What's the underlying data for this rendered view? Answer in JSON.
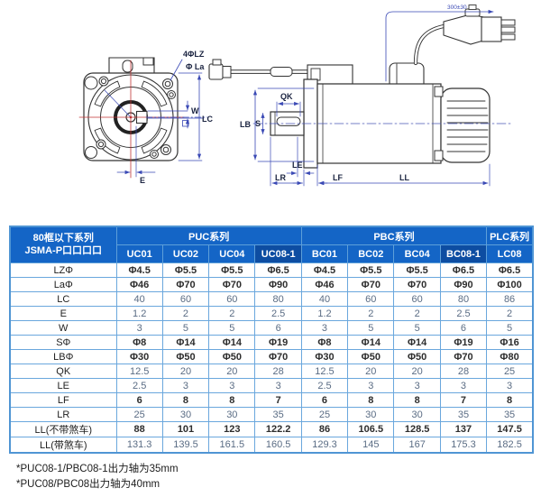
{
  "diagram": {
    "labels": {
      "holes": "4ΦLZ",
      "la": "Φ La",
      "w": "W",
      "lc": "LC",
      "e": "E",
      "qk": "QK",
      "s": "S",
      "lb": "LB",
      "le": "LE",
      "lr": "LR",
      "lf": "LF",
      "ll": "LL",
      "cable_length": "300±30"
    }
  },
  "table": {
    "corner_header": {
      "line1": "80框以下系列",
      "line2": "JSMA-P口口口口"
    },
    "groups": [
      {
        "label": "PUC系列",
        "span": 4
      },
      {
        "label": "PBC系列",
        "span": 4
      },
      {
        "label": "PLC系列",
        "span": 1
      }
    ],
    "columns": [
      "UC01",
      "UC02",
      "UC04",
      "UC08-1",
      "BC01",
      "BC02",
      "BC04",
      "BC08-1",
      "LC08"
    ],
    "highlighted_columns": [
      "UC08-1",
      "BC08-1"
    ],
    "rows": [
      {
        "label": "LZΦ",
        "tone": "dark",
        "values": [
          "Φ4.5",
          "Φ5.5",
          "Φ5.5",
          "Φ6.5",
          "Φ4.5",
          "Φ5.5",
          "Φ5.5",
          "Φ6.5",
          "Φ6.5"
        ]
      },
      {
        "label": "LaΦ",
        "tone": "dark",
        "values": [
          "Φ46",
          "Φ70",
          "Φ70",
          "Φ90",
          "Φ46",
          "Φ70",
          "Φ70",
          "Φ90",
          "Φ100"
        ]
      },
      {
        "label": "LC",
        "tone": "blue",
        "values": [
          "40",
          "60",
          "60",
          "80",
          "40",
          "60",
          "60",
          "80",
          "86"
        ]
      },
      {
        "label": "E",
        "tone": "blue",
        "values": [
          "1.2",
          "2",
          "2",
          "2.5",
          "1.2",
          "2",
          "2",
          "2.5",
          "2"
        ]
      },
      {
        "label": "W",
        "tone": "blue",
        "values": [
          "3",
          "5",
          "5",
          "6",
          "3",
          "5",
          "5",
          "6",
          "5"
        ]
      },
      {
        "label": "SΦ",
        "tone": "dark",
        "values": [
          "Φ8",
          "Φ14",
          "Φ14",
          "Φ19",
          "Φ8",
          "Φ14",
          "Φ14",
          "Φ19",
          "Φ16"
        ]
      },
      {
        "label": "LBΦ",
        "tone": "dark",
        "values": [
          "Φ30",
          "Φ50",
          "Φ50",
          "Φ70",
          "Φ30",
          "Φ50",
          "Φ50",
          "Φ70",
          "Φ80"
        ]
      },
      {
        "label": "QK",
        "tone": "blue",
        "values": [
          "12.5",
          "20",
          "20",
          "28",
          "12.5",
          "20",
          "20",
          "28",
          "25"
        ]
      },
      {
        "label": "LE",
        "tone": "blue",
        "values": [
          "2.5",
          "3",
          "3",
          "3",
          "2.5",
          "3",
          "3",
          "3",
          "3"
        ]
      },
      {
        "label": "LF",
        "tone": "dark",
        "values": [
          "6",
          "8",
          "8",
          "7",
          "6",
          "8",
          "8",
          "7",
          "8"
        ]
      },
      {
        "label": "LR",
        "tone": "blue",
        "values": [
          "25",
          "30",
          "30",
          "35",
          "25",
          "30",
          "30",
          "35",
          "35"
        ]
      },
      {
        "label": "LL(不带煞车)",
        "tone": "dark",
        "values": [
          "88",
          "101",
          "123",
          "122.2",
          "86",
          "106.5",
          "128.5",
          "137",
          "147.5"
        ]
      },
      {
        "label": "LL(带煞车)",
        "tone": "blue",
        "values": [
          "131.3",
          "139.5",
          "161.5",
          "160.5",
          "129.3",
          "145",
          "167",
          "175.3",
          "182.5"
        ]
      }
    ]
  },
  "notes": [
    "*PUC08-1/PBC08-1出力轴为35mm",
    "*PUC08/PBC08出力轴为40mm"
  ],
  "colors": {
    "header_bg": "#1465c6",
    "header_highlight_bg": "#0d4da2",
    "table_border": "#6aa7dd",
    "dimension_blue": "#3a49b5",
    "centerline_red": "#c23434"
  }
}
